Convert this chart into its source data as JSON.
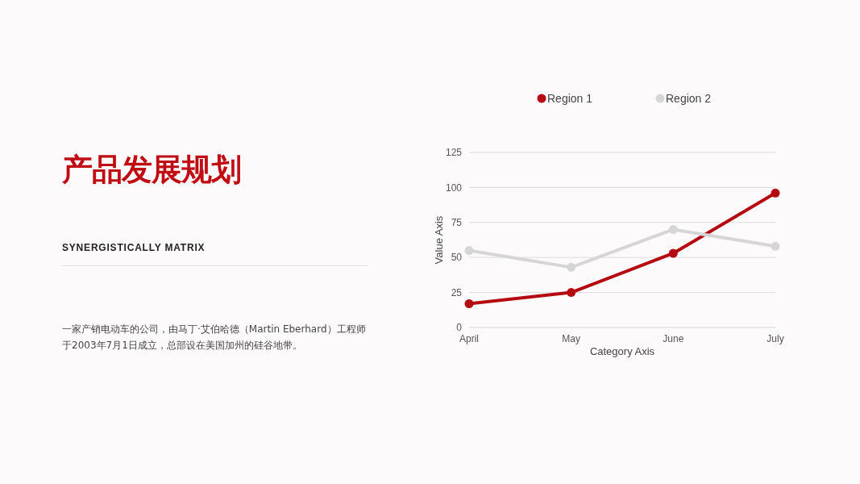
{
  "chart_data": {
    "type": "line",
    "title": "产品发展规划",
    "subtitle": "SYNERGISTICALLY MATRIX",
    "annotations": [
      "一家产销电动车的公司，由马丁·艾伯哈德（Martin Eberhard）工程师于2003年7月1日成立，总部设在美国加州的硅谷地带。"
    ],
    "xlabel": "Category Axis",
    "ylabel": "Value Axis",
    "categories": [
      "April",
      "May",
      "June",
      "July"
    ],
    "series": [
      {
        "name": "Region 1",
        "color": "#b50a12",
        "values": [
          17,
          25,
          53,
          96
        ]
      },
      {
        "name": "Region 2",
        "color": "#d6d6d6",
        "values": [
          55,
          43,
          70,
          58
        ]
      }
    ],
    "ylim": [
      0,
      125
    ],
    "yticks": [
      0,
      25,
      50,
      75,
      100,
      125
    ],
    "grid": "y",
    "legend": "top",
    "marker": "circle",
    "line_style": "solid"
  }
}
